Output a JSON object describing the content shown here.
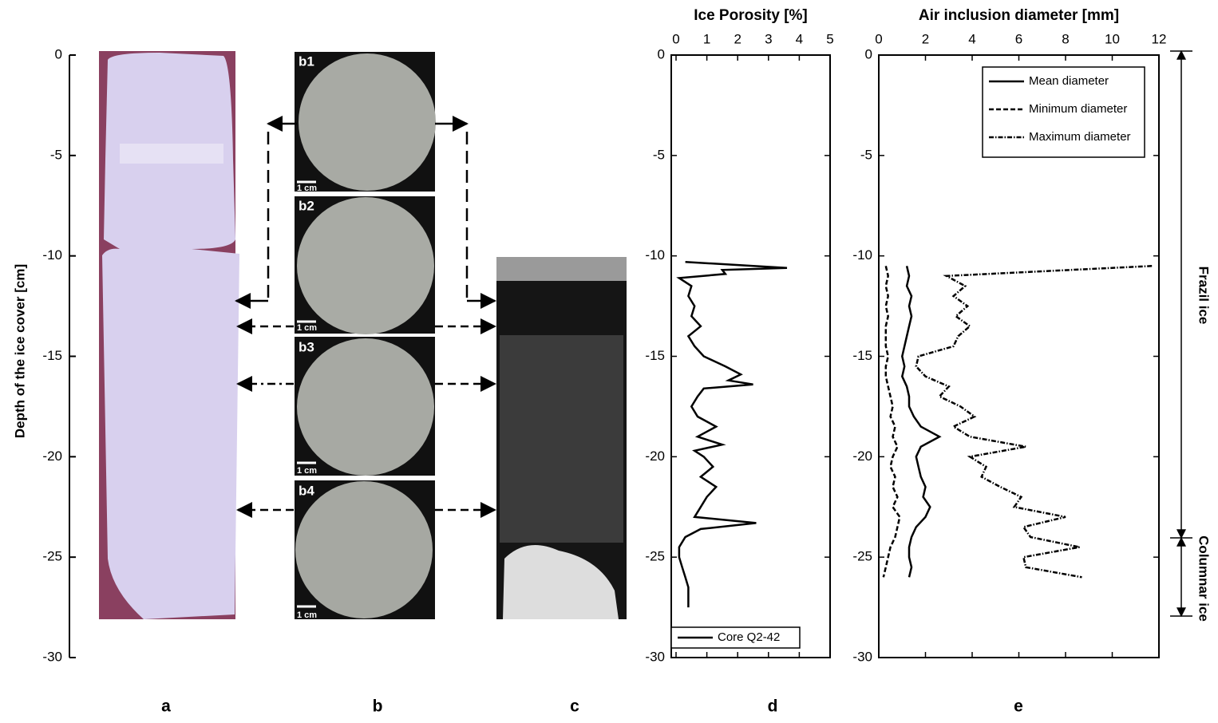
{
  "panel_a": {
    "axis_label": "Depth of the ice cover [cm]",
    "ylim": [
      0,
      -30
    ],
    "yticks": [
      0,
      -5,
      -10,
      -15,
      -20,
      -25,
      -30
    ]
  },
  "images": {
    "labels": [
      "b1",
      "b2",
      "b3",
      "b4"
    ],
    "scale_bars": [
      "1 cm",
      "1 cm",
      "1 cm",
      "1 cm"
    ]
  },
  "panel_labels": [
    "a",
    "b",
    "c",
    "d",
    "e"
  ],
  "layers": [
    "Frazil ice",
    "Columnar ice"
  ],
  "chart_data": [
    {
      "type": "line",
      "title": "Ice Porosity [%]",
      "xlim": [
        0,
        5
      ],
      "xticks": [
        0,
        1,
        2,
        3,
        4,
        5
      ],
      "ylim": [
        0,
        -30
      ],
      "yticks": [
        0,
        -5,
        -10,
        -15,
        -20,
        -25,
        -30
      ],
      "legend": "lower left",
      "y": [
        -10.3,
        -10.6,
        -10.7,
        -10.9,
        -11.1,
        -11.5,
        -12.0,
        -12.5,
        -13.0,
        -13.5,
        -14.0,
        -14.5,
        -15.0,
        -15.5,
        -15.9,
        -16.2,
        -16.4,
        -16.6,
        -17.0,
        -17.5,
        -18.0,
        -18.5,
        -19.0,
        -19.4,
        -19.7,
        -20.0,
        -20.5,
        -21.0,
        -21.5,
        -22.0,
        -22.5,
        -23.0,
        -23.3,
        -23.6,
        -24.0,
        -24.5,
        -25.0,
        -25.5,
        -26.0,
        -26.5,
        -27.0,
        -27.5
      ],
      "series": [
        {
          "name": "Core Q2-42",
          "color": "#000000",
          "dash": "none",
          "values": [
            0.3,
            3.6,
            1.5,
            1.6,
            0.1,
            0.5,
            0.4,
            0.6,
            0.5,
            0.8,
            0.4,
            0.6,
            0.9,
            1.6,
            2.1,
            1.7,
            2.5,
            0.9,
            0.7,
            0.5,
            0.7,
            1.3,
            0.7,
            1.5,
            0.6,
            0.9,
            1.2,
            0.8,
            1.3,
            1.0,
            0.8,
            0.6,
            2.6,
            0.8,
            0.3,
            0.1,
            0.1,
            0.2,
            0.3,
            0.4,
            0.4,
            0.4
          ]
        }
      ]
    },
    {
      "type": "line",
      "title": "Air inclusion diameter [mm]",
      "xlim": [
        0,
        12
      ],
      "xticks": [
        0,
        2,
        4,
        6,
        8,
        10,
        12
      ],
      "ylim": [
        0,
        -30
      ],
      "yticks": [
        0,
        -5,
        -10,
        -15,
        -20,
        -25,
        -30
      ],
      "legend": "upper right",
      "y": [
        -10.5,
        -11,
        -11.5,
        -12,
        -12.5,
        -13,
        -13.5,
        -14,
        -14.5,
        -15,
        -15.5,
        -16,
        -16.5,
        -17,
        -17.5,
        -18,
        -18.5,
        -19,
        -19.5,
        -20,
        -20.5,
        -21,
        -21.5,
        -22,
        -22.5,
        -23,
        -23.5,
        -24,
        -24.5,
        -25,
        -25.5,
        -26
      ],
      "series": [
        {
          "name": "Mean diameter",
          "color": "#000000",
          "dash": "none",
          "values": [
            1.2,
            1.3,
            1.2,
            1.4,
            1.3,
            1.4,
            1.3,
            1.2,
            1.1,
            1.0,
            1.1,
            1.0,
            1.2,
            1.3,
            1.3,
            1.5,
            1.8,
            2.6,
            1.8,
            1.6,
            1.7,
            1.8,
            2.0,
            1.9,
            2.2,
            2.0,
            1.6,
            1.4,
            1.3,
            1.3,
            1.4,
            1.3
          ]
        },
        {
          "name": "Minimum diameter",
          "color": "#000000",
          "dash": "6,3",
          "values": [
            0.3,
            0.4,
            0.3,
            0.4,
            0.3,
            0.4,
            0.3,
            0.3,
            0.3,
            0.4,
            0.3,
            0.3,
            0.4,
            0.5,
            0.6,
            0.5,
            0.7,
            0.6,
            0.8,
            0.6,
            0.5,
            0.7,
            0.6,
            0.8,
            0.6,
            0.9,
            0.8,
            0.7,
            0.5,
            0.4,
            0.3,
            0.2
          ]
        },
        {
          "name": "Maximum diameter",
          "color": "#000000",
          "dash": "6,2,1.5,2",
          "values": [
            11.7,
            2.9,
            3.7,
            3.2,
            3.8,
            3.3,
            3.9,
            3.4,
            3.2,
            1.7,
            1.6,
            2.0,
            3.0,
            2.6,
            3.5,
            4.1,
            3.2,
            3.9,
            6.3,
            3.9,
            4.6,
            4.4,
            5.2,
            6.1,
            5.8,
            8.0,
            6.2,
            6.5,
            8.6,
            6.2,
            6.3,
            8.7
          ]
        }
      ]
    }
  ]
}
